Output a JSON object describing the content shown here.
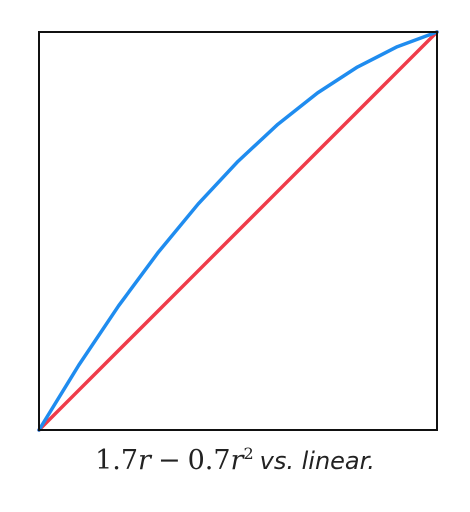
{
  "chart_data": {
    "type": "line",
    "title": "",
    "xlabel": "",
    "ylabel": "",
    "xlim": [
      0,
      1
    ],
    "ylim": [
      0,
      1
    ],
    "grid": false,
    "x": [
      0,
      0.1,
      0.2,
      0.3,
      0.4,
      0.5,
      0.6,
      0.7,
      0.8,
      0.9,
      1.0
    ],
    "series": [
      {
        "color": "#1f8cef",
        "values": [
          0,
          0.163,
          0.312,
          0.447,
          0.568,
          0.675,
          0.768,
          0.847,
          0.912,
          0.963,
          1.0
        ]
      },
      {
        "color": "#ef3c4a",
        "values": [
          0,
          0.1,
          0.2,
          0.3,
          0.4,
          0.5,
          0.6,
          0.7,
          0.8,
          0.9,
          1.0
        ]
      }
    ]
  },
  "caption": {
    "coef_a": "1.7",
    "var_r": "r",
    "minus": "−",
    "coef_b": "0.7",
    "exponent": "2",
    "text": "vs. linear."
  }
}
